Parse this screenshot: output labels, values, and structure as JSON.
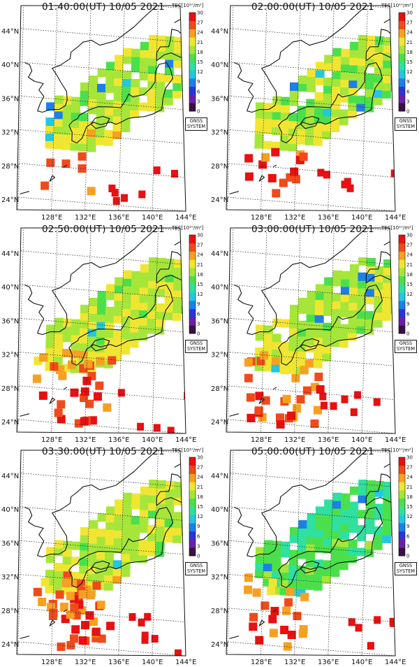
{
  "figure": {
    "colorbar": {
      "label": "TEC[10¹⁰/m²]",
      "ticks": [
        "30",
        "27",
        "24",
        "21",
        "18",
        "15",
        "12",
        "9",
        "6",
        "3",
        "0"
      ],
      "colors": [
        "#3b0f3f",
        "#6a1fa8",
        "#2b34d6",
        "#1d7fe8",
        "#23c7e0",
        "#2fe0a0",
        "#4be04b",
        "#a6e63a",
        "#f0e632",
        "#f7a021",
        "#f04a1c",
        "#e81010"
      ]
    },
    "badge": [
      "GNSS",
      "SYSTEM"
    ],
    "lat_labels": [
      "44°N",
      "40°N",
      "36°N",
      "32°N",
      "28°N",
      "24°N"
    ],
    "lon_labels": [
      "128°E",
      "132°E",
      "136°E",
      "140°E",
      "144°E"
    ],
    "panels": [
      {
        "title": "01:40:00(UT) 10/05 2021",
        "south_level": "low"
      },
      {
        "title": "02:00:00(UT) 10/05 2021",
        "south_level": "mid"
      },
      {
        "title": "02:50:00(UT) 10/05 2021",
        "south_level": "high"
      },
      {
        "title": "03:00:00(UT) 10/05 2021",
        "south_level": "high"
      },
      {
        "title": "03:30:00(UT) 10/05 2021",
        "south_level": "max"
      },
      {
        "title": "05:00:00(UT) 10/05 2021",
        "south_level": "late"
      }
    ]
  }
}
